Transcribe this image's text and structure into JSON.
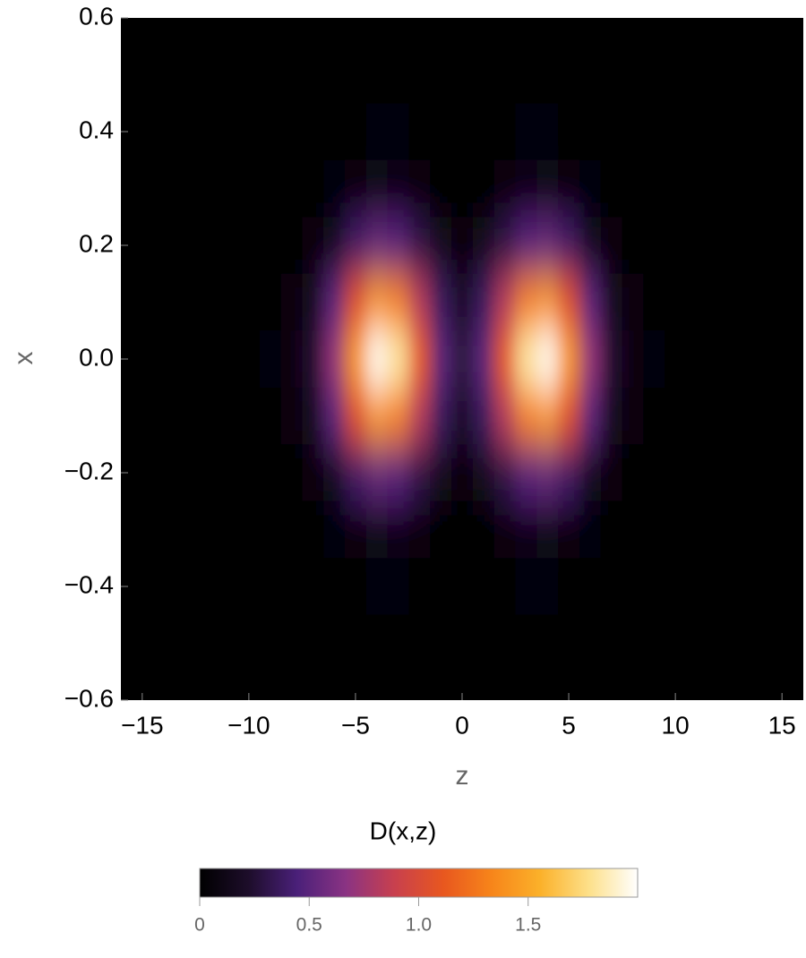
{
  "chart_data": {
    "type": "heatmap",
    "xlabel": "z",
    "ylabel": "x",
    "colorbar_label": "D(x,z)",
    "z": [
      -16,
      -15,
      -14,
      -13,
      -12,
      -11,
      -10,
      -9,
      -8,
      -7,
      -6,
      -5,
      -4,
      -3,
      -2,
      -1,
      0,
      1,
      2,
      3,
      4,
      5,
      6,
      7,
      8,
      9,
      10,
      11,
      12,
      13,
      14,
      15,
      16
    ],
    "x": [
      0.6,
      0.5,
      0.4,
      0.3,
      0.2,
      0.1,
      0,
      -0.1,
      -0.2,
      -0.3,
      -0.4,
      -0.5,
      -0.6
    ],
    "values": [
      [
        0,
        0,
        0,
        0,
        0,
        0,
        0,
        0,
        0,
        0,
        0,
        0,
        0,
        0,
        0,
        0,
        0,
        0,
        0,
        0,
        0,
        0,
        0,
        0,
        0,
        0,
        0,
        0,
        0,
        0,
        0,
        0,
        0
      ],
      [
        0,
        0,
        0,
        0,
        0,
        0,
        0,
        0,
        0,
        0,
        0.01,
        0.01,
        0.02,
        0.01,
        0.01,
        0,
        0,
        0,
        0.01,
        0.01,
        0.02,
        0.01,
        0.01,
        0,
        0,
        0,
        0,
        0,
        0,
        0,
        0,
        0,
        0
      ],
      [
        0,
        0,
        0,
        0,
        0,
        0,
        0,
        0,
        0,
        0,
        0.01,
        0.03,
        0.04,
        0.04,
        0.02,
        0.01,
        0.01,
        0.01,
        0.02,
        0.04,
        0.04,
        0.03,
        0.01,
        0,
        0,
        0,
        0,
        0,
        0,
        0,
        0,
        0,
        0
      ],
      [
        0,
        0,
        0,
        0,
        0,
        0,
        0,
        0,
        0,
        0.01,
        0.04,
        0.09,
        0.12,
        0.11,
        0.07,
        0.03,
        0.02,
        0.03,
        0.07,
        0.11,
        0.12,
        0.09,
        0.04,
        0.01,
        0,
        0,
        0,
        0,
        0,
        0,
        0,
        0,
        0
      ],
      [
        0,
        0,
        0,
        0,
        0,
        0,
        0.01,
        0.01,
        0.02,
        0.06,
        0.19,
        0.39,
        0.53,
        0.49,
        0.31,
        0.14,
        0.08,
        0.14,
        0.31,
        0.49,
        0.53,
        0.39,
        0.19,
        0.06,
        0.02,
        0.01,
        0.01,
        0,
        0,
        0,
        0,
        0,
        0
      ],
      [
        0,
        0,
        0,
        0,
        0,
        0.01,
        0.01,
        0.03,
        0.06,
        0.17,
        0.51,
        1.04,
        1.42,
        1.31,
        0.82,
        0.37,
        0.2,
        0.37,
        0.82,
        1.31,
        1.42,
        1.04,
        0.51,
        0.17,
        0.06,
        0.03,
        0.01,
        0.01,
        0,
        0,
        0,
        0,
        0
      ],
      [
        0,
        0,
        0,
        0,
        0,
        0.01,
        0.02,
        0.04,
        0.08,
        0.24,
        0.71,
        1.44,
        1.97,
        1.82,
        1.14,
        0.51,
        0.28,
        0.51,
        1.14,
        1.82,
        1.97,
        1.44,
        0.71,
        0.24,
        0.08,
        0.04,
        0.02,
        0.01,
        0,
        0,
        0,
        0,
        0
      ],
      [
        0,
        0,
        0,
        0,
        0,
        0.01,
        0.01,
        0.03,
        0.06,
        0.17,
        0.51,
        1.04,
        1.42,
        1.31,
        0.82,
        0.37,
        0.2,
        0.37,
        0.82,
        1.31,
        1.42,
        1.04,
        0.51,
        0.17,
        0.06,
        0.03,
        0.01,
        0.01,
        0,
        0,
        0,
        0,
        0
      ],
      [
        0,
        0,
        0,
        0,
        0,
        0,
        0.01,
        0.01,
        0.02,
        0.06,
        0.19,
        0.39,
        0.53,
        0.49,
        0.31,
        0.14,
        0.08,
        0.14,
        0.31,
        0.49,
        0.53,
        0.39,
        0.19,
        0.06,
        0.02,
        0.01,
        0.01,
        0,
        0,
        0,
        0,
        0,
        0
      ],
      [
        0,
        0,
        0,
        0,
        0,
        0,
        0,
        0,
        0,
        0.01,
        0.04,
        0.09,
        0.12,
        0.11,
        0.07,
        0.03,
        0.02,
        0.03,
        0.07,
        0.11,
        0.12,
        0.09,
        0.04,
        0.01,
        0,
        0,
        0,
        0,
        0,
        0,
        0,
        0,
        0
      ],
      [
        0,
        0,
        0,
        0,
        0,
        0,
        0,
        0,
        0,
        0,
        0.01,
        0.03,
        0.04,
        0.04,
        0.02,
        0.01,
        0.01,
        0.01,
        0.02,
        0.04,
        0.04,
        0.03,
        0.01,
        0,
        0,
        0,
        0,
        0,
        0,
        0,
        0,
        0,
        0
      ],
      [
        0,
        0,
        0,
        0,
        0,
        0,
        0,
        0,
        0,
        0,
        0.01,
        0.01,
        0.02,
        0.01,
        0.01,
        0,
        0,
        0,
        0.01,
        0.01,
        0.02,
        0.01,
        0.01,
        0,
        0,
        0,
        0,
        0,
        0,
        0,
        0,
        0,
        0
      ],
      [
        0,
        0,
        0,
        0,
        0,
        0,
        0,
        0,
        0,
        0,
        0,
        0,
        0,
        0,
        0,
        0,
        0,
        0,
        0,
        0,
        0,
        0,
        0,
        0,
        0,
        0,
        0,
        0,
        0,
        0,
        0,
        0,
        0
      ]
    ],
    "xlim": [
      -16,
      16
    ],
    "xticks": [
      {
        "value": -15,
        "label": "−15"
      },
      {
        "value": -10,
        "label": "−10"
      },
      {
        "value": -5,
        "label": "−5"
      },
      0,
      5,
      10,
      15
    ],
    "ylim": [
      -0.6,
      0.6
    ],
    "yticks": [
      0.6,
      0.4,
      0.2,
      {
        "value": 0,
        "label": "0.0"
      },
      {
        "value": -0.2,
        "label": "−0.2"
      },
      {
        "value": -0.4,
        "label": "−0.4"
      },
      {
        "value": -0.6,
        "label": "−0.6"
      }
    ],
    "colorbar_lim": [
      0,
      2
    ],
    "colorbar_ticks": [
      0,
      0.5,
      {
        "value": 1,
        "label": "1.0"
      },
      1.5
    ],
    "colormap": [
      "#000000",
      "#1d0d2a",
      "#4a2079",
      "#8a3383",
      "#c8404e",
      "#e8571f",
      "#f7851a",
      "#fbb12a",
      "#fde08a",
      "#ffffff"
    ]
  }
}
